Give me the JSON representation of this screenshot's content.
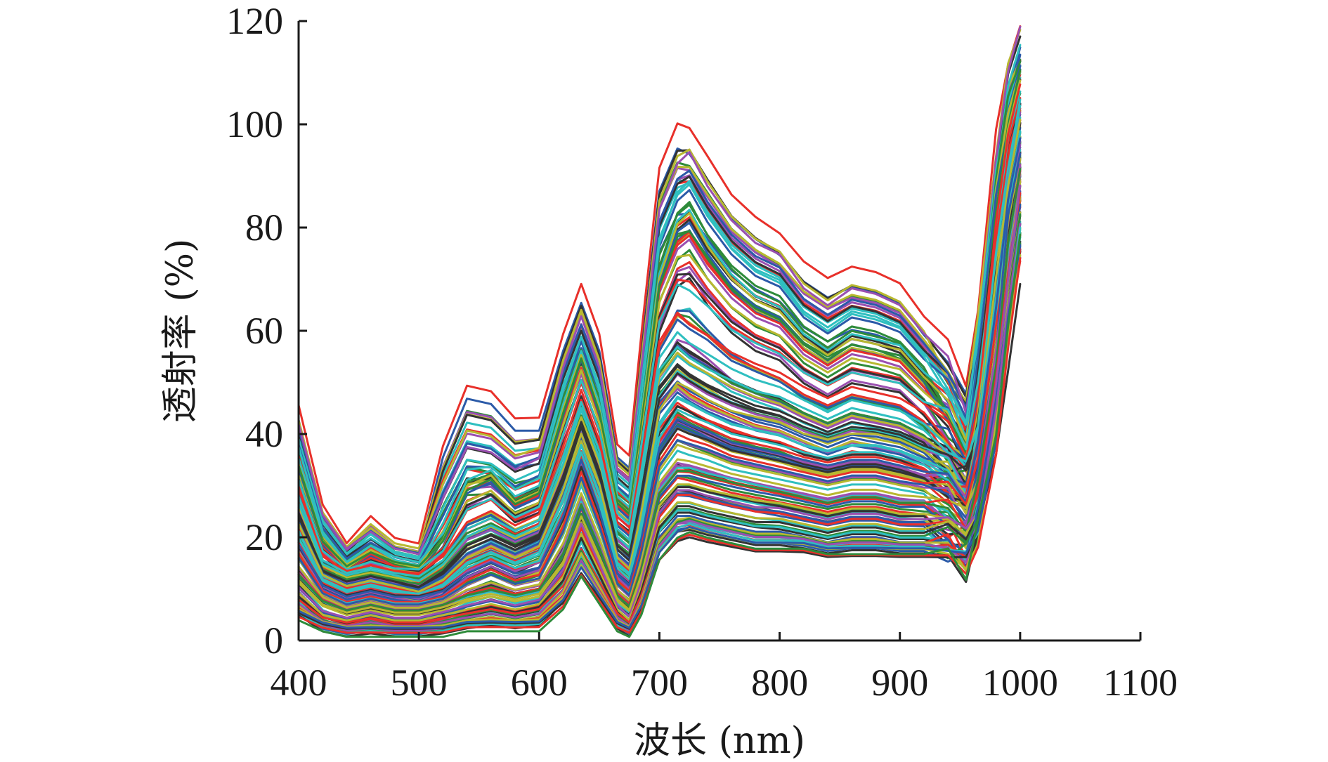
{
  "chart_data": {
    "type": "line",
    "title": "",
    "xlabel": "波长 (nm)",
    "ylabel": "透射率 (%)",
    "xlim": [
      400,
      1100
    ],
    "ylim": [
      0,
      120
    ],
    "xticks": [
      400,
      500,
      600,
      700,
      800,
      900,
      1000,
      1100
    ],
    "yticks": [
      0,
      20,
      40,
      60,
      80,
      100,
      120
    ],
    "grid": false,
    "legend": "none",
    "colors": [
      "#2b5aa8",
      "#e8302a",
      "#2e8b3a",
      "#9a4fb0",
      "#2fbfc0",
      "#b8b830",
      "#333333"
    ],
    "representative_profiles": {
      "x": [
        400,
        420,
        440,
        460,
        480,
        500,
        520,
        540,
        560,
        580,
        600,
        620,
        635,
        650,
        665,
        675,
        685,
        700,
        715,
        725,
        740,
        760,
        780,
        800,
        820,
        840,
        860,
        880,
        900,
        920,
        940,
        955,
        965,
        980,
        990,
        1000
      ],
      "series": [
        {
          "values": [
            42,
            24,
            17,
            22,
            18,
            17,
            35,
            46,
            45,
            40,
            40,
            55,
            64,
            55,
            35,
            33,
            55,
            85,
            93,
            92,
            87,
            80,
            76,
            73,
            68,
            65,
            67,
            66,
            64,
            58,
            52,
            44,
            60,
            90,
            105,
            112
          ]
        },
        {
          "values": [
            38,
            22,
            16,
            19,
            16,
            15,
            25,
            34,
            33,
            30,
            32,
            48,
            57,
            48,
            30,
            28,
            48,
            76,
            84,
            86,
            80,
            74,
            70,
            68,
            62,
            59,
            62,
            61,
            59,
            54,
            48,
            41,
            56,
            86,
            100,
            108
          ]
        },
        {
          "values": [
            32,
            18,
            13,
            16,
            14,
            13,
            18,
            28,
            30,
            25,
            27,
            42,
            52,
            42,
            25,
            23,
            40,
            66,
            76,
            78,
            72,
            66,
            62,
            60,
            55,
            52,
            55,
            54,
            53,
            48,
            43,
            36,
            50,
            80,
            95,
            104
          ]
        },
        {
          "values": [
            28,
            15,
            12,
            13,
            12,
            12,
            15,
            22,
            24,
            21,
            23,
            36,
            46,
            37,
            22,
            20,
            34,
            56,
            62,
            60,
            58,
            54,
            52,
            50,
            47,
            45,
            47,
            46,
            45,
            42,
            38,
            33,
            45,
            74,
            90,
            100
          ]
        },
        {
          "values": [
            24,
            13,
            11,
            12,
            11,
            10,
            13,
            18,
            20,
            18,
            20,
            31,
            41,
            32,
            18,
            16,
            28,
            48,
            52,
            50,
            48,
            46,
            44,
            43,
            41,
            39,
            41,
            40,
            39,
            37,
            34,
            30,
            40,
            68,
            85,
            96
          ]
        },
        {
          "values": [
            20,
            11,
            9,
            10,
            9,
            8,
            10,
            14,
            16,
            14,
            16,
            26,
            36,
            27,
            14,
            12,
            22,
            40,
            45,
            44,
            42,
            40,
            39,
            38,
            36,
            35,
            36,
            36,
            35,
            33,
            31,
            27,
            36,
            62,
            80,
            92
          ]
        },
        {
          "values": [
            16,
            9,
            7,
            8,
            7,
            7,
            8,
            11,
            13,
            11,
            12,
            21,
            31,
            22,
            11,
            9,
            17,
            33,
            38,
            37,
            36,
            34,
            33,
            32,
            31,
            30,
            31,
            31,
            30,
            29,
            27,
            24,
            32,
            56,
            75,
            88
          ]
        },
        {
          "values": [
            12,
            7,
            5,
            6,
            5,
            5,
            6,
            8,
            9,
            8,
            9,
            16,
            25,
            17,
            8,
            6,
            13,
            27,
            31,
            31,
            30,
            29,
            28,
            27,
            26,
            25,
            26,
            26,
            25,
            25,
            23,
            21,
            28,
            50,
            70,
            84
          ]
        },
        {
          "values": [
            8,
            4,
            3,
            4,
            3,
            3,
            4,
            5,
            6,
            5,
            6,
            11,
            19,
            12,
            5,
            3,
            9,
            21,
            25,
            25,
            24,
            23,
            22,
            22,
            21,
            20,
            21,
            21,
            20,
            20,
            19,
            17,
            24,
            44,
            64,
            80
          ]
        },
        {
          "values": [
            4,
            2,
            1,
            1,
            1,
            1,
            1,
            2,
            2,
            2,
            2,
            6,
            12,
            7,
            2,
            1,
            5,
            15,
            19,
            20,
            19,
            18,
            17,
            17,
            17,
            16,
            16,
            16,
            16,
            16,
            15,
            14,
            20,
            38,
            58,
            74
          ]
        }
      ]
    }
  }
}
